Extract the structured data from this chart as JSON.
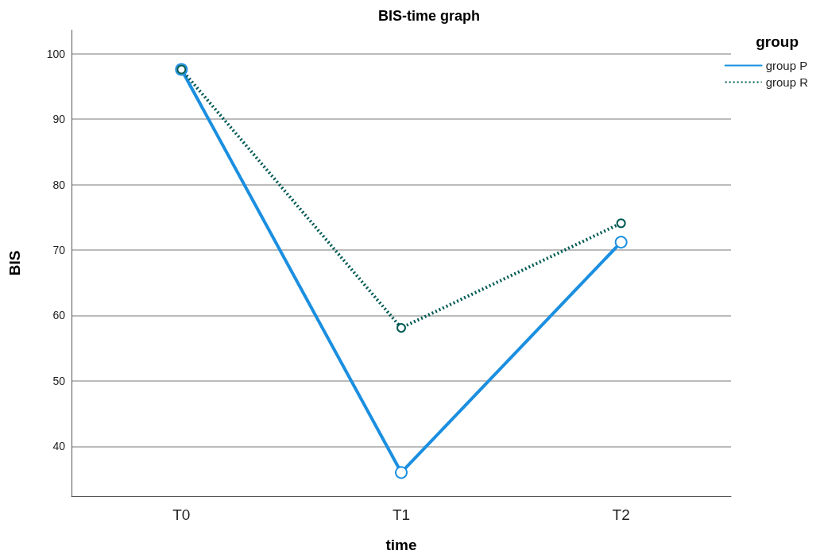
{
  "chart_data": {
    "type": "line",
    "title": "BIS-time graph",
    "xlabel": "time",
    "ylabel": "BIS",
    "legend_title": "group",
    "categories": [
      "T0",
      "T1",
      "T2"
    ],
    "series": [
      {
        "name": "group P",
        "color": "#1b8fe0",
        "values": [
          97.6,
          36.0,
          71.2
        ],
        "line_style": "solid"
      },
      {
        "name": "group R",
        "color": "#005a55",
        "values": [
          97.6,
          58.1,
          74.1
        ],
        "line_style": "dotted"
      }
    ],
    "ylim": [
      32.4,
      103.6
    ],
    "yticks": [
      40,
      50,
      60,
      70,
      80,
      90,
      100
    ],
    "grid": "y",
    "legend": "top right",
    "marker": "circle"
  }
}
